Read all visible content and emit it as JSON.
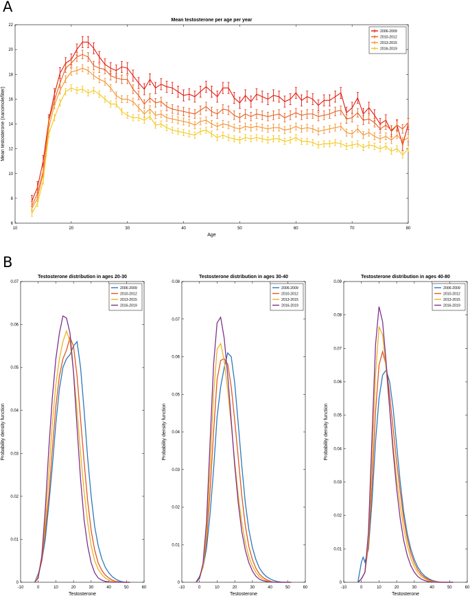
{
  "panels": {
    "a_label": "A",
    "b_label": "B"
  },
  "chart_data": [
    {
      "type": "line",
      "title": "Mean testosterone per age per year",
      "xlabel": "Age",
      "ylabel": "Mean testosterone (nanomole/liter)",
      "xlim": [
        10,
        80
      ],
      "ylim": [
        6,
        22
      ],
      "xticks": [
        10,
        20,
        30,
        40,
        50,
        60,
        70,
        80
      ],
      "yticks": [
        6,
        8,
        10,
        12,
        14,
        16,
        18,
        20,
        22
      ],
      "legend_position": "top-right",
      "error_bars": true,
      "x": [
        13,
        14,
        15,
        16,
        17,
        18,
        19,
        20,
        21,
        22,
        23,
        24,
        25,
        26,
        27,
        28,
        29,
        30,
        31,
        32,
        33,
        34,
        35,
        36,
        37,
        38,
        39,
        40,
        41,
        42,
        43,
        44,
        45,
        46,
        47,
        48,
        49,
        50,
        51,
        52,
        53,
        54,
        55,
        56,
        57,
        58,
        59,
        60,
        61,
        62,
        63,
        64,
        65,
        66,
        67,
        68,
        69,
        70,
        71,
        72,
        73,
        74,
        75,
        76,
        77,
        78,
        79,
        80
      ],
      "series": [
        {
          "name": "2006-2009",
          "color": "#e3170a",
          "err": 0.45,
          "values": [
            7.8,
            8.9,
            11.0,
            14.3,
            16.4,
            18.1,
            18.9,
            19.2,
            20.0,
            20.6,
            20.6,
            20.1,
            19.4,
            18.8,
            18.5,
            18.3,
            18.6,
            18.5,
            17.9,
            17.3,
            16.8,
            17.6,
            16.9,
            17.2,
            17.0,
            16.9,
            16.6,
            16.3,
            16.4,
            16.2,
            16.6,
            17.0,
            16.6,
            16.2,
            16.9,
            16.9,
            16.1,
            15.7,
            16.3,
            15.8,
            16.4,
            16.2,
            16.0,
            16.3,
            16.2,
            15.8,
            16.0,
            16.5,
            15.9,
            16.2,
            16.0,
            15.5,
            15.9,
            15.9,
            16.2,
            16.5,
            14.9,
            15.3,
            16.1,
            14.8,
            15.3,
            14.7,
            14.0,
            14.3,
            13.4,
            13.9,
            12.3,
            14.0
          ]
        },
        {
          "name": "2010-2012",
          "color": "#e85c1b",
          "err": 0.35,
          "values": [
            7.4,
            8.4,
            10.2,
            14.2,
            15.9,
            17.3,
            18.5,
            18.9,
            19.4,
            19.6,
            19.4,
            18.7,
            18.5,
            18.4,
            17.9,
            17.7,
            17.6,
            17.6,
            16.8,
            16.3,
            15.6,
            16.1,
            15.7,
            15.8,
            15.4,
            15.2,
            15.1,
            15.0,
            14.9,
            14.8,
            15.1,
            15.4,
            15.0,
            14.8,
            15.2,
            15.1,
            14.7,
            14.5,
            14.8,
            14.6,
            14.8,
            14.7,
            14.6,
            14.7,
            14.8,
            14.5,
            14.7,
            14.9,
            14.7,
            14.8,
            14.8,
            14.6,
            14.7,
            14.8,
            15.0,
            15.1,
            14.4,
            14.5,
            14.9,
            14.3,
            14.4,
            14.1,
            13.6,
            13.9,
            13.5,
            13.9,
            13.6,
            14.1
          ]
        },
        {
          "name": "2013-2015",
          "color": "#f4922c",
          "err": 0.28,
          "values": [
            7.2,
            8.0,
            10.0,
            13.7,
            15.5,
            16.7,
            17.6,
            18.2,
            18.3,
            18.5,
            18.3,
            17.9,
            17.6,
            17.4,
            16.9,
            16.3,
            16.0,
            16.0,
            15.8,
            15.3,
            14.8,
            15.2,
            14.7,
            14.8,
            14.5,
            14.4,
            14.3,
            14.2,
            14.1,
            13.9,
            14.2,
            14.3,
            14.0,
            13.8,
            14.0,
            13.9,
            13.7,
            13.6,
            13.8,
            13.7,
            13.8,
            13.7,
            13.6,
            13.7,
            13.7,
            13.5,
            13.6,
            13.8,
            13.6,
            13.7,
            13.6,
            13.4,
            13.5,
            13.6,
            13.7,
            13.8,
            13.3,
            13.2,
            13.6,
            13.1,
            13.3,
            13.0,
            12.8,
            13.0,
            12.7,
            13.1,
            12.6,
            12.9
          ]
        },
        {
          "name": "2016-2019",
          "color": "#f5c518",
          "err": 0.25,
          "values": [
            6.8,
            7.6,
            9.4,
            13.2,
            14.5,
            15.7,
            16.6,
            16.9,
            16.7,
            16.8,
            16.5,
            16.7,
            16.4,
            16.0,
            15.6,
            15.6,
            15.0,
            14.7,
            14.5,
            14.5,
            14.3,
            14.6,
            13.9,
            14.0,
            13.7,
            13.5,
            13.4,
            13.3,
            13.2,
            13.1,
            13.4,
            13.5,
            13.2,
            12.9,
            13.1,
            12.9,
            12.8,
            12.7,
            12.9,
            12.8,
            12.9,
            12.8,
            12.7,
            12.8,
            12.8,
            12.6,
            12.7,
            12.9,
            12.6,
            12.6,
            12.5,
            12.3,
            12.4,
            12.4,
            12.5,
            12.4,
            12.2,
            12.3,
            12.4,
            12.1,
            12.3,
            12.2,
            12.0,
            12.2,
            11.8,
            12.0,
            11.5,
            12.0
          ]
        }
      ]
    },
    {
      "type": "line",
      "title": "Testosterone distribution in ages 20-30",
      "xlabel": "Testosterone",
      "ylabel": "Probability density function",
      "xlim": [
        -10,
        60
      ],
      "ylim": [
        0,
        0.07
      ],
      "xticks": [
        -10,
        0,
        10,
        20,
        30,
        40,
        50,
        60
      ],
      "yticks": [
        0,
        0.01,
        0.02,
        0.03,
        0.04,
        0.05,
        0.06,
        0.07
      ],
      "legend_position": "top-right",
      "x": [
        -2,
        0,
        2,
        4,
        6,
        8,
        10,
        12,
        14,
        16,
        18,
        20,
        22,
        24,
        26,
        28,
        30,
        32,
        34,
        36,
        38,
        40,
        42,
        44,
        46,
        48,
        50,
        52
      ],
      "series": [
        {
          "name": "2006-2009",
          "color": "#2878bd",
          "values": [
            0,
            0.002,
            0.005,
            0.01,
            0.018,
            0.027,
            0.037,
            0.045,
            0.05,
            0.052,
            0.053,
            0.055,
            0.056,
            0.05,
            0.04,
            0.029,
            0.02,
            0.013,
            0.0085,
            0.0055,
            0.0035,
            0.0022,
            0.0013,
            0.0007,
            0.0003,
            0.0001,
            0,
            0
          ]
        },
        {
          "name": "2010-2012",
          "color": "#e0581e",
          "values": [
            0,
            0.0015,
            0.005,
            0.012,
            0.02,
            0.031,
            0.041,
            0.048,
            0.052,
            0.054,
            0.057,
            0.055,
            0.048,
            0.038,
            0.028,
            0.019,
            0.012,
            0.0075,
            0.0045,
            0.0028,
            0.0017,
            0.001,
            0.0005,
            0.0002,
            0.0001,
            0,
            0,
            0
          ]
        },
        {
          "name": "2013-2015",
          "color": "#edb120",
          "values": [
            0,
            0.0015,
            0.006,
            0.014,
            0.025,
            0.037,
            0.046,
            0.052,
            0.056,
            0.0585,
            0.056,
            0.049,
            0.04,
            0.03,
            0.021,
            0.014,
            0.0085,
            0.005,
            0.003,
            0.0018,
            0.001,
            0.0005,
            0.0002,
            0.0001,
            0,
            0,
            0,
            0
          ]
        },
        {
          "name": "2016-2019",
          "color": "#7e2f8e",
          "values": [
            0,
            0.001,
            0.006,
            0.017,
            0.031,
            0.043,
            0.052,
            0.058,
            0.062,
            0.0615,
            0.058,
            0.049,
            0.036,
            0.024,
            0.0145,
            0.0085,
            0.0045,
            0.0022,
            0.001,
            0.0005,
            0.0002,
            0.0001,
            0,
            0,
            0,
            0,
            0,
            0
          ]
        }
      ]
    },
    {
      "type": "line",
      "title": "Testosterone distribution in ages 30-40",
      "xlabel": "Testosterone",
      "ylabel": "Probability density function",
      "xlim": [
        -10,
        60
      ],
      "ylim": [
        0,
        0.08
      ],
      "xticks": [
        -10,
        0,
        10,
        20,
        30,
        40,
        50,
        60
      ],
      "yticks": [
        0,
        0.01,
        0.02,
        0.03,
        0.04,
        0.05,
        0.06,
        0.07,
        0.08
      ],
      "legend_position": "top-right",
      "x": [
        -2,
        0,
        2,
        4,
        6,
        8,
        10,
        12,
        14,
        16,
        18,
        20,
        22,
        24,
        26,
        28,
        30,
        32,
        34,
        36,
        38,
        40,
        42,
        44,
        46,
        48,
        50,
        52
      ],
      "series": [
        {
          "name": "2006-2009",
          "color": "#2878bd",
          "values": [
            0,
            0.0015,
            0.004,
            0.009,
            0.018,
            0.03,
            0.044,
            0.052,
            0.057,
            0.061,
            0.06,
            0.053,
            0.042,
            0.031,
            0.021,
            0.014,
            0.0092,
            0.006,
            0.0038,
            0.0024,
            0.0015,
            0.0009,
            0.0005,
            0.0002,
            0.0001,
            0,
            0,
            0
          ]
        },
        {
          "name": "2010-2012",
          "color": "#e0581e",
          "values": [
            0,
            0.0012,
            0.004,
            0.011,
            0.024,
            0.04,
            0.054,
            0.059,
            0.0595,
            0.058,
            0.052,
            0.043,
            0.033,
            0.023,
            0.015,
            0.0095,
            0.006,
            0.0037,
            0.0022,
            0.0013,
            0.0007,
            0.0003,
            0.0001,
            0,
            0,
            0,
            0,
            0
          ]
        },
        {
          "name": "2013-2015",
          "color": "#edb120",
          "values": [
            0,
            0.001,
            0.004,
            0.013,
            0.03,
            0.05,
            0.062,
            0.0635,
            0.059,
            0.051,
            0.042,
            0.032,
            0.023,
            0.016,
            0.0105,
            0.0068,
            0.0043,
            0.0026,
            0.0015,
            0.0008,
            0.0004,
            0.0002,
            0.0001,
            0,
            0,
            0,
            0,
            0
          ]
        },
        {
          "name": "2016-2019",
          "color": "#7e2f8e",
          "values": [
            0,
            0.001,
            0.005,
            0.016,
            0.037,
            0.058,
            0.069,
            0.0705,
            0.065,
            0.055,
            0.043,
            0.031,
            0.021,
            0.0135,
            0.0085,
            0.0052,
            0.003,
            0.0016,
            0.0008,
            0.0004,
            0.0002,
            0.0001,
            0,
            0,
            0,
            0,
            0,
            0
          ]
        }
      ]
    },
    {
      "type": "line",
      "title": "Testosterone distribution in ages 40-80",
      "xlabel": "Testosterone",
      "ylabel": "Probability density function",
      "xlim": [
        -10,
        60
      ],
      "ylim": [
        0,
        0.09
      ],
      "xticks": [
        -10,
        0,
        10,
        20,
        30,
        40,
        50,
        60
      ],
      "yticks": [
        0,
        0.01,
        0.02,
        0.03,
        0.04,
        0.05,
        0.06,
        0.07,
        0.08,
        0.09
      ],
      "legend_position": "top-right",
      "x": [
        -2,
        0,
        1,
        2,
        4,
        6,
        8,
        10,
        12,
        14,
        16,
        18,
        20,
        22,
        24,
        26,
        28,
        30,
        32,
        34,
        36,
        38,
        40,
        42,
        44,
        46,
        48,
        50,
        52
      ],
      "series": [
        {
          "name": "2006-2009",
          "color": "#2878bd",
          "values": [
            0,
            0.006,
            0.0075,
            0.006,
            0.01,
            0.024,
            0.042,
            0.055,
            0.062,
            0.0635,
            0.06,
            0.052,
            0.041,
            0.03,
            0.021,
            0.0145,
            0.01,
            0.0068,
            0.0045,
            0.0029,
            0.0018,
            0.0011,
            0.0006,
            0.0003,
            0.0001,
            0,
            0,
            0,
            0
          ]
        },
        {
          "name": "2010-2012",
          "color": "#e0581e",
          "values": [
            0,
            0.001,
            0.002,
            0.003,
            0.011,
            0.029,
            0.051,
            0.065,
            0.069,
            0.065,
            0.056,
            0.046,
            0.036,
            0.027,
            0.019,
            0.013,
            0.0088,
            0.0058,
            0.0037,
            0.0023,
            0.0014,
            0.0008,
            0.0004,
            0.0002,
            0.0001,
            0,
            0,
            0,
            0
          ]
        },
        {
          "name": "2013-2015",
          "color": "#edb120",
          "values": [
            0,
            0.001,
            0.002,
            0.003,
            0.013,
            0.036,
            0.062,
            0.0765,
            0.074,
            0.064,
            0.052,
            0.041,
            0.031,
            0.023,
            0.016,
            0.011,
            0.0072,
            0.0046,
            0.0029,
            0.0017,
            0.001,
            0.0005,
            0.0002,
            0.0001,
            0,
            0,
            0,
            0,
            0
          ]
        },
        {
          "name": "2016-2019",
          "color": "#7e2f8e",
          "values": [
            0,
            0.001,
            0.002,
            0.003,
            0.015,
            0.043,
            0.071,
            0.0825,
            0.078,
            0.066,
            0.052,
            0.039,
            0.028,
            0.019,
            0.0125,
            0.008,
            0.005,
            0.003,
            0.0017,
            0.0009,
            0.0005,
            0.0002,
            0.0001,
            0,
            0,
            0,
            0,
            0,
            0
          ]
        }
      ]
    }
  ]
}
